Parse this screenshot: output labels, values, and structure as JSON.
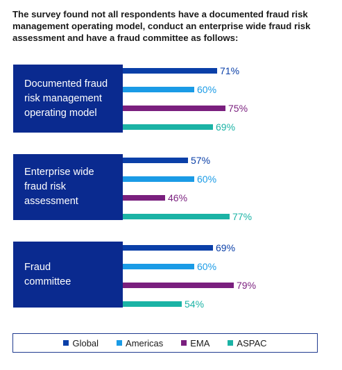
{
  "title": "The survey found not all respondents have a documented fraud risk management operating model, conduct an enterprise wide fraud risk assessment and have a fraud committee as follows:",
  "colors": {
    "label_box": "#0a2a8f",
    "Global": "#0a3fa8",
    "Americas": "#1a9be6",
    "EMA": "#7a1f7e",
    "ASPAC": "#1bb3a5"
  },
  "chart_data": {
    "type": "bar",
    "orientation": "horizontal",
    "categories": [
      "Documented fraud risk management operating model",
      "Enterprise wide fraud risk assessment",
      "Fraud committee"
    ],
    "category_lines": [
      [
        "Documented fraud",
        "risk management",
        "operating model"
      ],
      [
        "Enterprise wide",
        "fraud risk",
        "assessment"
      ],
      [
        "Fraud",
        "committee"
      ]
    ],
    "series": [
      {
        "name": "Global",
        "values": [
          71,
          57,
          69
        ],
        "labels": [
          "71%",
          "57%",
          "69%"
        ]
      },
      {
        "name": "Americas",
        "values": [
          60,
          60,
          60
        ],
        "labels": [
          "60%",
          "60%",
          "60%"
        ]
      },
      {
        "name": "EMA",
        "values": [
          75,
          46,
          79
        ],
        "labels": [
          "75%",
          "46%",
          "79%"
        ]
      },
      {
        "name": "ASPAC",
        "values": [
          69,
          77,
          54
        ],
        "labels": [
          "69%",
          "77%",
          "54%"
        ]
      }
    ],
    "xlim": [
      0,
      100
    ],
    "unit": "%",
    "legend": "bottom"
  },
  "legend": [
    {
      "label": "Global",
      "color": "#0a3fa8"
    },
    {
      "label": "Americas",
      "color": "#1a9be6"
    },
    {
      "label": "EMA",
      "color": "#7a1f7e"
    },
    {
      "label": "ASPAC",
      "color": "#1bb3a5"
    }
  ]
}
